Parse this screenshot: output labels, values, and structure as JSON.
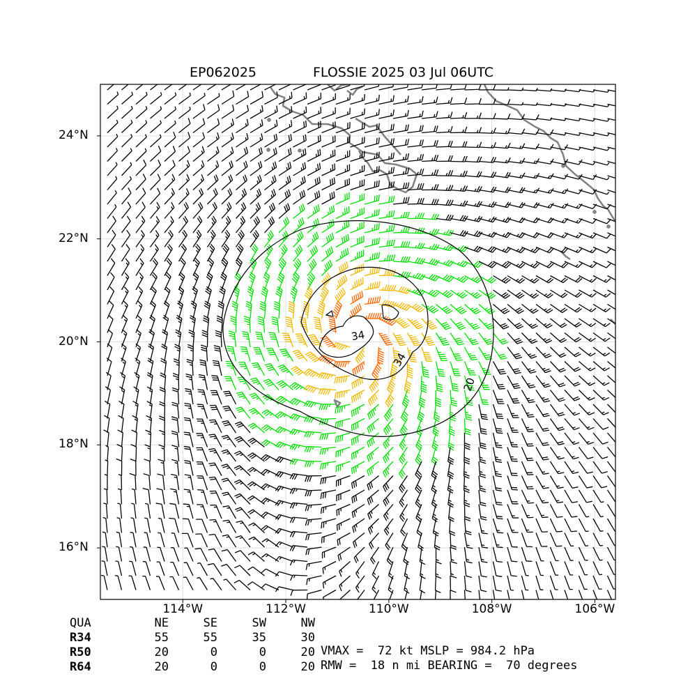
{
  "title": {
    "storm_id": "EP062025",
    "main": "FLOSSIE 2025 03 Jul 06UTC"
  },
  "axes": {
    "y_ticks": [
      {
        "label": "24°N",
        "value": 24
      },
      {
        "label": "22°N",
        "value": 22
      },
      {
        "label": "20°N",
        "value": 20
      },
      {
        "label": "18°N",
        "value": 18
      },
      {
        "label": "16°N",
        "value": 16
      }
    ],
    "x_ticks": [
      {
        "label": "114°W",
        "value": -114
      },
      {
        "label": "112°W",
        "value": -112
      },
      {
        "label": "110°W",
        "value": -110
      },
      {
        "label": "108°W",
        "value": -108
      },
      {
        "label": "106°W",
        "value": -106
      }
    ],
    "lon_range": [
      -115.6,
      -105.6
    ],
    "lat_range": [
      15.0,
      25.0
    ],
    "grid": true
  },
  "map": {
    "projection": "lat-lon",
    "coastline_color": "#808080",
    "storm_center": {
      "lon": -110.6,
      "lat": 20.1
    },
    "barb_colors": {
      "below_34": "#000000",
      "r34_50": "#00e000",
      "r50_64": "#f0b800",
      "above_64": "#ff6600"
    },
    "contours": [
      {
        "level": "20",
        "label": "20",
        "color": "#000000"
      },
      {
        "level": "34",
        "label": "34",
        "color": "#000000"
      },
      {
        "level": "34",
        "label": "34",
        "color": "#000000"
      }
    ]
  },
  "radii_table": {
    "headers": [
      "QUA",
      "NE",
      "SE",
      "SW",
      "NW"
    ],
    "rows": [
      {
        "label": "R34",
        "values": [
          "55",
          "55",
          "35",
          "30"
        ]
      },
      {
        "label": "R50",
        "values": [
          "20",
          "0",
          "0",
          "20"
        ]
      },
      {
        "label": "R64",
        "values": [
          "20",
          "0",
          "0",
          "20"
        ]
      }
    ]
  },
  "stats": {
    "line1": "VMAX =  72 kt MSLP = 984.2 hPa",
    "line2": "RMW =  18 n mi BEARING =  70 degrees"
  }
}
